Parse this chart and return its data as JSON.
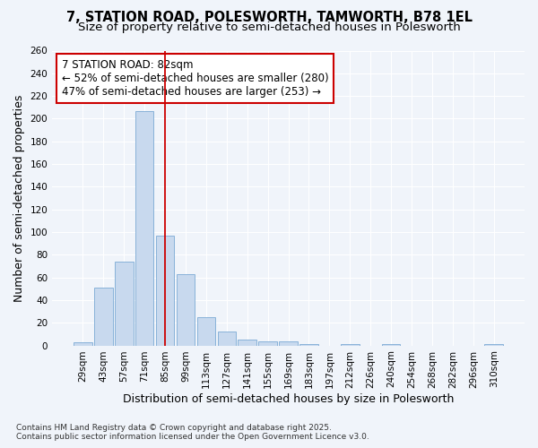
{
  "title_line1": "7, STATION ROAD, POLESWORTH, TAMWORTH, B78 1EL",
  "title_line2": "Size of property relative to semi-detached houses in Polesworth",
  "xlabel": "Distribution of semi-detached houses by size in Polesworth",
  "ylabel": "Number of semi-detached properties",
  "categories": [
    "29sqm",
    "43sqm",
    "57sqm",
    "71sqm",
    "85sqm",
    "99sqm",
    "113sqm",
    "127sqm",
    "141sqm",
    "155sqm",
    "169sqm",
    "183sqm",
    "197sqm",
    "212sqm",
    "226sqm",
    "240sqm",
    "254sqm",
    "268sqm",
    "282sqm",
    "296sqm",
    "310sqm"
  ],
  "values": [
    3,
    51,
    74,
    207,
    97,
    63,
    25,
    12,
    5,
    4,
    4,
    1,
    0,
    1,
    0,
    1,
    0,
    0,
    0,
    0,
    1
  ],
  "bar_color": "#c8d9ee",
  "bar_edge_color": "#7baad4",
  "vline_index": 4,
  "vline_color": "#cc0000",
  "annotation_text": "7 STATION ROAD: 82sqm\n← 52% of semi-detached houses are smaller (280)\n47% of semi-detached houses are larger (253) →",
  "annotation_box_facecolor": "#ffffff",
  "annotation_box_edgecolor": "#cc0000",
  "footnote": "Contains HM Land Registry data © Crown copyright and database right 2025.\nContains public sector information licensed under the Open Government Licence v3.0.",
  "ylim_max": 260,
  "ytick_step": 20,
  "bg_color": "#f0f4fa",
  "grid_color": "#ffffff",
  "title1_fontsize": 10.5,
  "title2_fontsize": 9.5,
  "axis_label_fontsize": 9,
  "tick_fontsize": 7.5,
  "annotation_fontsize": 8.5,
  "footnote_fontsize": 6.5
}
